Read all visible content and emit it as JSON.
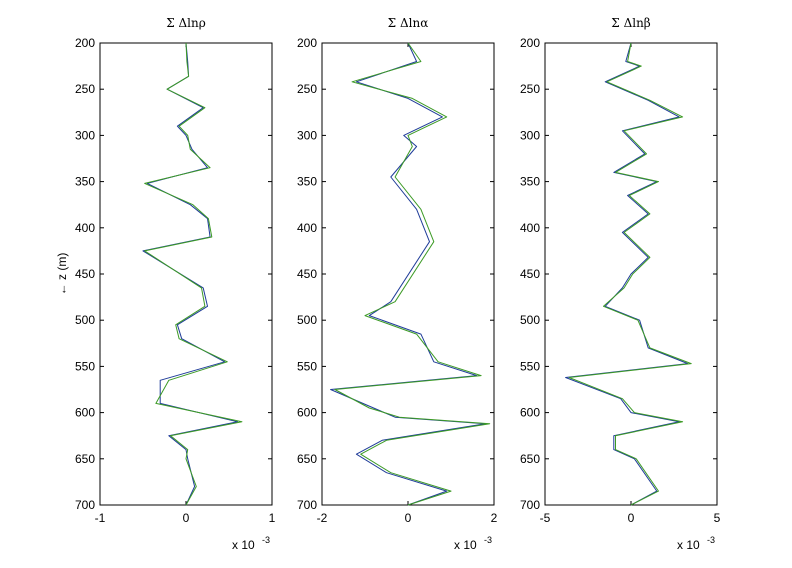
{
  "figure": {
    "ylabel": "← z (m)",
    "multiplier_base": "x 10",
    "multiplier_exp": "-3"
  },
  "colors": {
    "blue": "#1f3c99",
    "green": "#3c9a25",
    "axis": "#000000",
    "background": "#ffffff"
  },
  "chart_data": [
    {
      "type": "line",
      "title": "Σ Δlnρ",
      "xlim": [
        -1,
        1
      ],
      "xticks": [
        -1,
        0,
        1
      ],
      "ylim": [
        200,
        700
      ],
      "y_reversed": true,
      "yticks": [
        200,
        250,
        300,
        350,
        400,
        450,
        500,
        550,
        600,
        650,
        700
      ],
      "x_multiplier": "x 10^-3",
      "series": [
        {
          "color": "blue",
          "points": [
            [
              0.0,
              200
            ],
            [
              0.02,
              220
            ],
            [
              0.03,
              236
            ],
            [
              -0.22,
              250
            ],
            [
              0.2,
              270
            ],
            [
              -0.1,
              290
            ],
            [
              0.0,
              300
            ],
            [
              0.07,
              315
            ],
            [
              0.25,
              335
            ],
            [
              -0.45,
              352
            ],
            [
              0.05,
              375
            ],
            [
              0.25,
              390
            ],
            [
              0.28,
              410
            ],
            [
              -0.5,
              425
            ],
            [
              0.2,
              465
            ],
            [
              0.25,
              485
            ],
            [
              -0.1,
              505
            ],
            [
              -0.05,
              520
            ],
            [
              0.45,
              545
            ],
            [
              -0.3,
              565
            ],
            [
              -0.3,
              590
            ],
            [
              0.6,
              610
            ],
            [
              -0.2,
              625
            ],
            [
              0.0,
              640
            ],
            [
              0.02,
              650
            ],
            [
              0.1,
              680
            ],
            [
              0.0,
              700
            ]
          ]
        },
        {
          "color": "green",
          "points": [
            [
              0.0,
              200
            ],
            [
              0.01,
              220
            ],
            [
              0.03,
              236
            ],
            [
              -0.22,
              250
            ],
            [
              0.22,
              270
            ],
            [
              -0.08,
              290
            ],
            [
              0.02,
              300
            ],
            [
              0.05,
              315
            ],
            [
              0.28,
              335
            ],
            [
              -0.48,
              352
            ],
            [
              0.08,
              375
            ],
            [
              0.26,
              390
            ],
            [
              0.3,
              410
            ],
            [
              -0.48,
              425
            ],
            [
              0.18,
              465
            ],
            [
              0.22,
              485
            ],
            [
              -0.12,
              505
            ],
            [
              -0.08,
              520
            ],
            [
              0.48,
              545
            ],
            [
              -0.2,
              565
            ],
            [
              -0.35,
              590
            ],
            [
              0.65,
              610
            ],
            [
              -0.18,
              625
            ],
            [
              0.02,
              640
            ],
            [
              0.0,
              650
            ],
            [
              0.12,
              680
            ],
            [
              0.0,
              700
            ]
          ]
        }
      ]
    },
    {
      "type": "line",
      "title": "Σ Δlnα",
      "xlim": [
        -2,
        2
      ],
      "xticks": [
        -2,
        0,
        2
      ],
      "ylim": [
        200,
        700
      ],
      "y_reversed": true,
      "yticks": [
        200,
        250,
        300,
        350,
        400,
        450,
        500,
        550,
        600,
        650,
        700
      ],
      "x_multiplier": "x 10^-3",
      "series": [
        {
          "color": "blue",
          "points": [
            [
              0.0,
              200
            ],
            [
              0.2,
              220
            ],
            [
              -1.2,
              242
            ],
            [
              0.0,
              260
            ],
            [
              0.8,
              280
            ],
            [
              -0.1,
              300
            ],
            [
              0.2,
              312
            ],
            [
              -0.4,
              345
            ],
            [
              0.2,
              380
            ],
            [
              0.5,
              415
            ],
            [
              -0.4,
              480
            ],
            [
              -0.9,
              495
            ],
            [
              0.3,
              515
            ],
            [
              0.6,
              545
            ],
            [
              1.6,
              560
            ],
            [
              -1.8,
              575
            ],
            [
              -0.8,
              595
            ],
            [
              -0.3,
              605
            ],
            [
              1.8,
              612
            ],
            [
              -0.6,
              630
            ],
            [
              -1.2,
              645
            ],
            [
              -0.5,
              665
            ],
            [
              0.9,
              685
            ],
            [
              0.0,
              700
            ]
          ]
        },
        {
          "color": "green",
          "points": [
            [
              0.0,
              200
            ],
            [
              0.3,
              220
            ],
            [
              -1.3,
              242
            ],
            [
              0.1,
              260
            ],
            [
              0.9,
              280
            ],
            [
              0.0,
              300
            ],
            [
              0.1,
              312
            ],
            [
              -0.3,
              345
            ],
            [
              0.3,
              380
            ],
            [
              0.6,
              415
            ],
            [
              -0.3,
              480
            ],
            [
              -1.0,
              495
            ],
            [
              0.2,
              515
            ],
            [
              0.7,
              545
            ],
            [
              1.7,
              560
            ],
            [
              -1.7,
              575
            ],
            [
              -0.9,
              595
            ],
            [
              -0.2,
              605
            ],
            [
              1.9,
              612
            ],
            [
              -0.5,
              630
            ],
            [
              -1.1,
              645
            ],
            [
              -0.4,
              665
            ],
            [
              1.0,
              685
            ],
            [
              0.0,
              700
            ]
          ]
        }
      ]
    },
    {
      "type": "line",
      "title": "Σ Δlnβ",
      "xlim": [
        -5,
        5
      ],
      "xticks": [
        -5,
        0,
        5
      ],
      "ylim": [
        200,
        700
      ],
      "y_reversed": true,
      "yticks": [
        200,
        250,
        300,
        350,
        400,
        450,
        500,
        550,
        600,
        650,
        700
      ],
      "x_multiplier": "x 10^-3",
      "series": [
        {
          "color": "blue",
          "points": [
            [
              0.0,
              200
            ],
            [
              -0.3,
              220
            ],
            [
              0.5,
              225
            ],
            [
              -1.5,
              242
            ],
            [
              1.0,
              262
            ],
            [
              2.8,
              280
            ],
            [
              -0.5,
              295
            ],
            [
              0.8,
              320
            ],
            [
              -1.0,
              340
            ],
            [
              1.5,
              350
            ],
            [
              -0.2,
              365
            ],
            [
              1.0,
              385
            ],
            [
              -0.5,
              405
            ],
            [
              1.0,
              432
            ],
            [
              0.0,
              450
            ],
            [
              -0.5,
              465
            ],
            [
              -1.5,
              485
            ],
            [
              0.5,
              500
            ],
            [
              1.0,
              530
            ],
            [
              3.3,
              547
            ],
            [
              -3.8,
              562
            ],
            [
              -0.6,
              585
            ],
            [
              0.0,
              600
            ],
            [
              2.8,
              610
            ],
            [
              -1.0,
              625
            ],
            [
              -1.0,
              640
            ],
            [
              0.2,
              650
            ],
            [
              1.5,
              685
            ],
            [
              0.0,
              700
            ]
          ]
        },
        {
          "color": "green",
          "points": [
            [
              0.0,
              200
            ],
            [
              -0.2,
              220
            ],
            [
              0.6,
              225
            ],
            [
              -1.4,
              242
            ],
            [
              1.1,
              262
            ],
            [
              3.0,
              280
            ],
            [
              -0.4,
              295
            ],
            [
              0.9,
              320
            ],
            [
              -0.9,
              340
            ],
            [
              1.6,
              350
            ],
            [
              -0.1,
              365
            ],
            [
              1.1,
              385
            ],
            [
              -0.4,
              405
            ],
            [
              1.1,
              432
            ],
            [
              0.1,
              450
            ],
            [
              -0.4,
              465
            ],
            [
              -1.6,
              485
            ],
            [
              0.4,
              500
            ],
            [
              1.1,
              530
            ],
            [
              3.5,
              547
            ],
            [
              -3.6,
              562
            ],
            [
              -0.5,
              585
            ],
            [
              0.2,
              600
            ],
            [
              3.0,
              610
            ],
            [
              -0.9,
              625
            ],
            [
              -0.9,
              640
            ],
            [
              0.3,
              650
            ],
            [
              1.6,
              685
            ],
            [
              0.0,
              700
            ]
          ]
        }
      ]
    }
  ]
}
